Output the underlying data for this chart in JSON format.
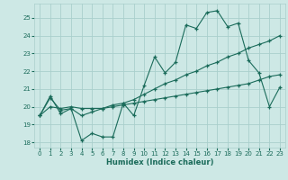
{
  "xlabel": "Humidex (Indice chaleur)",
  "bg_color": "#cde8e5",
  "grid_color": "#aacfcc",
  "line_color": "#1a6b5a",
  "xlim": [
    -0.5,
    23.5
  ],
  "ylim": [
    17.7,
    25.8
  ],
  "yticks": [
    18,
    19,
    20,
    21,
    22,
    23,
    24,
    25
  ],
  "xticks": [
    0,
    1,
    2,
    3,
    4,
    5,
    6,
    7,
    8,
    9,
    10,
    11,
    12,
    13,
    14,
    15,
    16,
    17,
    18,
    19,
    20,
    21,
    22,
    23
  ],
  "line1_x": [
    0,
    1,
    2,
    3,
    4,
    5,
    6,
    7,
    8,
    9,
    10,
    11,
    12,
    13,
    14,
    15,
    16,
    17,
    18,
    19,
    20,
    21,
    22,
    23
  ],
  "line1_y": [
    19.5,
    20.6,
    19.6,
    19.9,
    18.1,
    18.5,
    18.3,
    18.3,
    20.2,
    19.5,
    21.2,
    22.8,
    21.9,
    22.5,
    24.6,
    24.4,
    25.3,
    25.4,
    24.5,
    24.7,
    22.6,
    21.9,
    20.0,
    21.1
  ],
  "line2_x": [
    0,
    1,
    2,
    3,
    4,
    5,
    6,
    7,
    8,
    9,
    10,
    11,
    12,
    13,
    14,
    15,
    16,
    17,
    18,
    19,
    20,
    21,
    22,
    23
  ],
  "line2_y": [
    19.5,
    20.5,
    19.8,
    19.9,
    19.5,
    19.7,
    19.9,
    20.1,
    20.2,
    20.4,
    20.7,
    21.0,
    21.3,
    21.5,
    21.8,
    22.0,
    22.3,
    22.5,
    22.8,
    23.0,
    23.3,
    23.5,
    23.7,
    24.0
  ],
  "line3_x": [
    0,
    1,
    2,
    3,
    4,
    5,
    6,
    7,
    8,
    9,
    10,
    11,
    12,
    13,
    14,
    15,
    16,
    17,
    18,
    19,
    20,
    21,
    22,
    23
  ],
  "line3_y": [
    19.5,
    20.0,
    19.9,
    20.0,
    19.9,
    19.9,
    19.9,
    20.0,
    20.1,
    20.2,
    20.3,
    20.4,
    20.5,
    20.6,
    20.7,
    20.8,
    20.9,
    21.0,
    21.1,
    21.2,
    21.3,
    21.5,
    21.7,
    21.8
  ]
}
